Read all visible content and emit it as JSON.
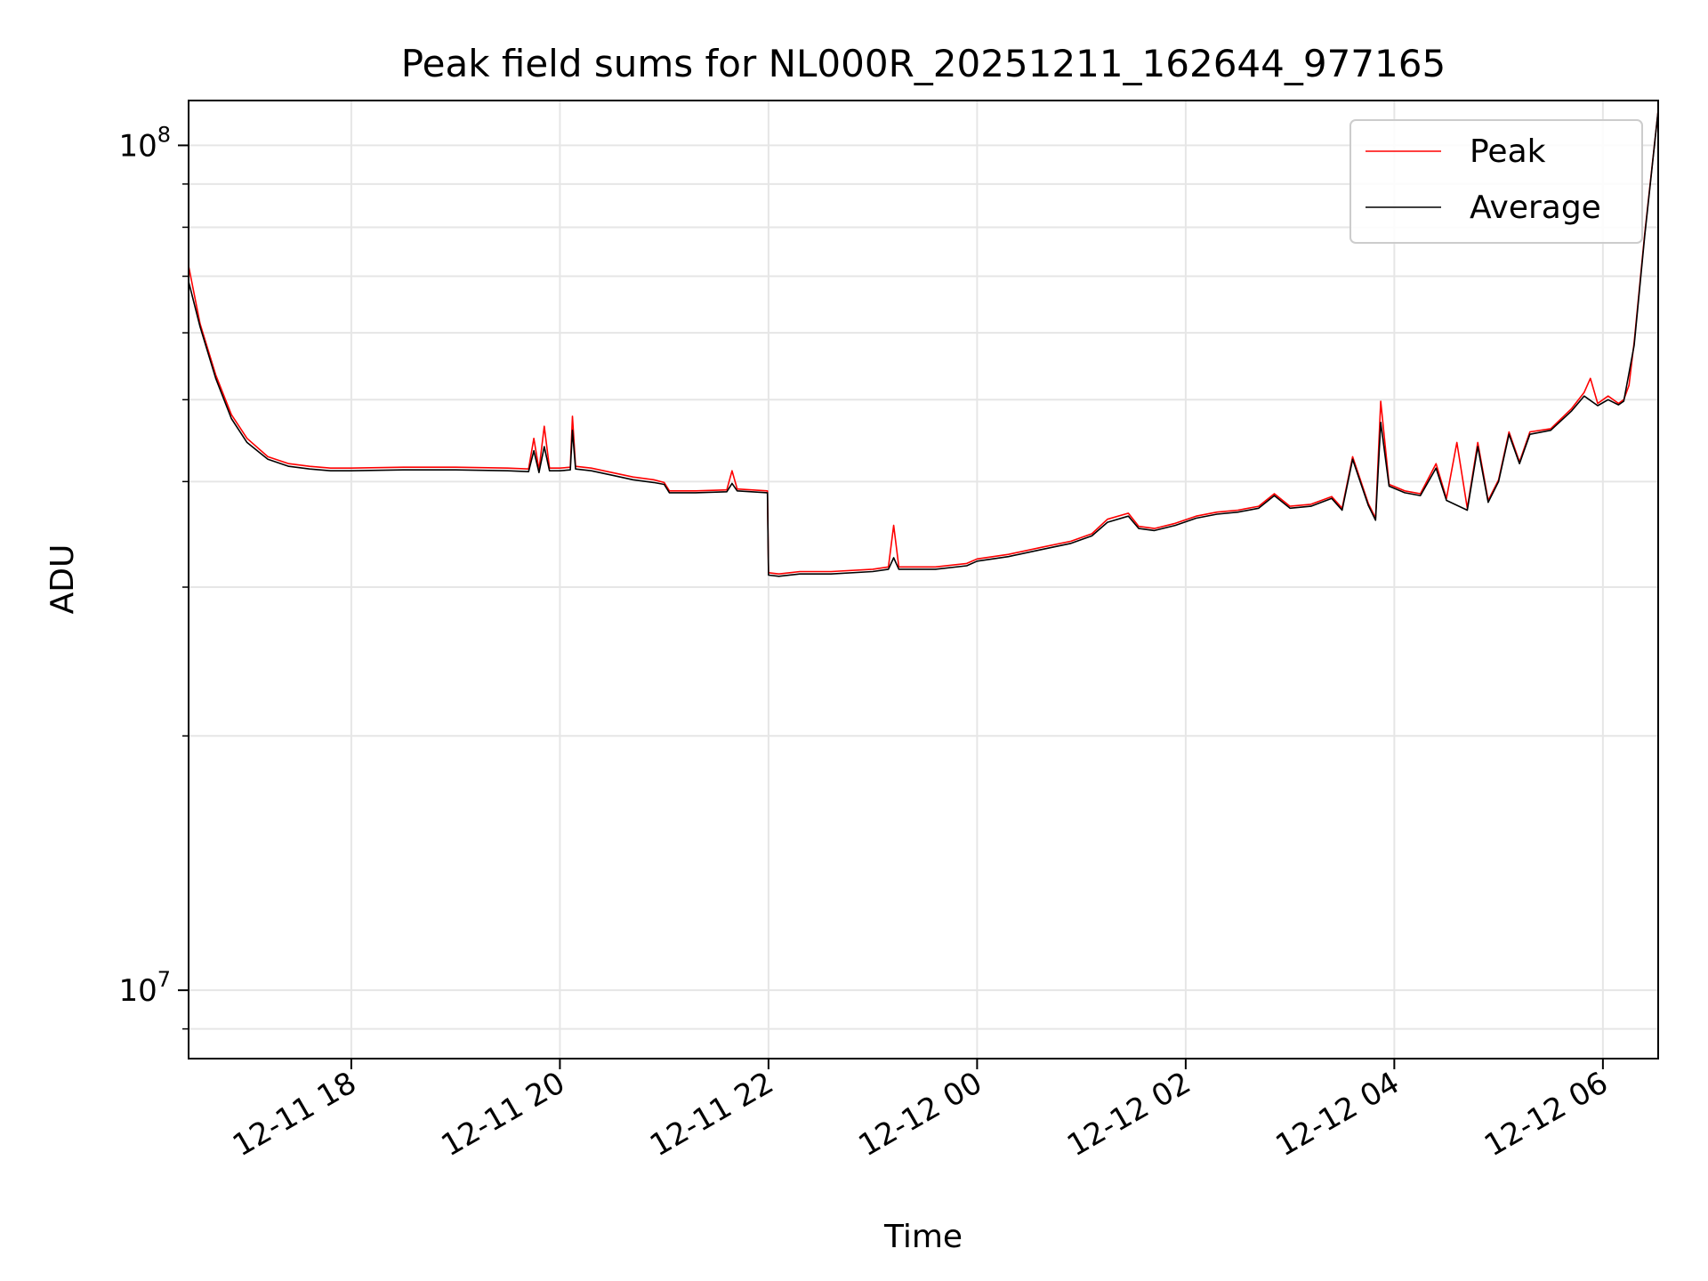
{
  "chart_data": {
    "type": "line",
    "title": "Peak field sums for NL000R_20251211_162644_977165",
    "xlabel": "Time",
    "ylabel": "ADU",
    "yscale": "log",
    "x_unit": "hours since 2025-12-11 00:00",
    "xlim": [
      16.44,
      30.53
    ],
    "ylim": [
      8300000.0,
      113000000.0
    ],
    "grid": true,
    "legend_position": "upper right",
    "x_ticks": [
      {
        "value": 18,
        "label": "12-11 18"
      },
      {
        "value": 20,
        "label": "12-11 20"
      },
      {
        "value": 22,
        "label": "12-11 22"
      },
      {
        "value": 24,
        "label": "12-12 00"
      },
      {
        "value": 26,
        "label": "12-12 02"
      },
      {
        "value": 28,
        "label": "12-12 04"
      },
      {
        "value": 30,
        "label": "12-12 06"
      }
    ],
    "y_major_ticks": [
      {
        "value": 10000000,
        "base": "10",
        "exp": "7"
      },
      {
        "value": 100000000,
        "base": "10",
        "exp": "8"
      }
    ],
    "y_minor_ticks": [
      9000000,
      20000000,
      30000000,
      40000000,
      50000000,
      60000000,
      70000000,
      80000000,
      90000000
    ],
    "series": [
      {
        "name": "Average",
        "color": "#000000",
        "points": [
          [
            16.44,
            69000000.0
          ],
          [
            16.55,
            61000000.0
          ],
          [
            16.7,
            53000000.0
          ],
          [
            16.85,
            47500000.0
          ],
          [
            17.0,
            44500000.0
          ],
          [
            17.2,
            42500000.0
          ],
          [
            17.4,
            41700000.0
          ],
          [
            17.6,
            41400000.0
          ],
          [
            17.8,
            41200000.0
          ],
          [
            18.0,
            41200000.0
          ],
          [
            18.5,
            41300000.0
          ],
          [
            19.0,
            41300000.0
          ],
          [
            19.5,
            41200000.0
          ],
          [
            19.7,
            41100000.0
          ],
          [
            19.75,
            43500000.0
          ],
          [
            19.8,
            41000000.0
          ],
          [
            19.85,
            44000000.0
          ],
          [
            19.9,
            41200000.0
          ],
          [
            20.0,
            41200000.0
          ],
          [
            20.1,
            41300000.0
          ],
          [
            20.12,
            46000000.0
          ],
          [
            20.15,
            41400000.0
          ],
          [
            20.3,
            41200000.0
          ],
          [
            20.5,
            40700000.0
          ],
          [
            20.7,
            40200000.0
          ],
          [
            20.9,
            39900000.0
          ],
          [
            21.0,
            39700000.0
          ],
          [
            21.05,
            38800000.0
          ],
          [
            21.3,
            38800000.0
          ],
          [
            21.6,
            38900000.0
          ],
          [
            21.65,
            39800000.0
          ],
          [
            21.7,
            39000000.0
          ],
          [
            21.99,
            38800000.0
          ],
          [
            22.0,
            31000000.0
          ],
          [
            22.1,
            30900000.0
          ],
          [
            22.3,
            31100000.0
          ],
          [
            22.6,
            31100000.0
          ],
          [
            23.0,
            31300000.0
          ],
          [
            23.15,
            31500000.0
          ],
          [
            23.2,
            32500000.0
          ],
          [
            23.25,
            31500000.0
          ],
          [
            23.6,
            31500000.0
          ],
          [
            23.9,
            31800000.0
          ],
          [
            24.0,
            32200000.0
          ],
          [
            24.3,
            32600000.0
          ],
          [
            24.6,
            33200000.0
          ],
          [
            24.9,
            33800000.0
          ],
          [
            25.1,
            34500000.0
          ],
          [
            25.25,
            35800000.0
          ],
          [
            25.45,
            36400000.0
          ],
          [
            25.55,
            35200000.0
          ],
          [
            25.7,
            35000000.0
          ],
          [
            25.9,
            35500000.0
          ],
          [
            26.1,
            36200000.0
          ],
          [
            26.3,
            36600000.0
          ],
          [
            26.5,
            36800000.0
          ],
          [
            26.7,
            37200000.0
          ],
          [
            26.85,
            38500000.0
          ],
          [
            27.0,
            37200000.0
          ],
          [
            27.2,
            37400000.0
          ],
          [
            27.4,
            38200000.0
          ],
          [
            27.5,
            37000000.0
          ],
          [
            27.6,
            42500000.0
          ],
          [
            27.75,
            37500000.0
          ],
          [
            27.82,
            36000000.0
          ],
          [
            27.87,
            47000000.0
          ],
          [
            27.95,
            39500000.0
          ],
          [
            28.1,
            38800000.0
          ],
          [
            28.25,
            38500000.0
          ],
          [
            28.4,
            41500000.0
          ],
          [
            28.5,
            38000000.0
          ],
          [
            28.7,
            37000000.0
          ],
          [
            28.8,
            44000000.0
          ],
          [
            28.9,
            37800000.0
          ],
          [
            29.0,
            40000000.0
          ],
          [
            29.1,
            45500000.0
          ],
          [
            29.2,
            42000000.0
          ],
          [
            29.3,
            45500000.0
          ],
          [
            29.5,
            46000000.0
          ],
          [
            29.7,
            48500000.0
          ],
          [
            29.82,
            50500000.0
          ],
          [
            29.95,
            49200000.0
          ],
          [
            30.05,
            50000000.0
          ],
          [
            30.15,
            49300000.0
          ],
          [
            30.2,
            49800000.0
          ],
          [
            30.3,
            58000000.0
          ],
          [
            30.4,
            78000000.0
          ],
          [
            30.53,
            110000000.0
          ]
        ]
      },
      {
        "name": "Peak",
        "color": "#ff0000",
        "points": [
          [
            16.44,
            72000000.0
          ],
          [
            16.55,
            61500000.0
          ],
          [
            16.7,
            53500000.0
          ],
          [
            16.85,
            48000000.0
          ],
          [
            17.0,
            45000000.0
          ],
          [
            17.2,
            42800000.0
          ],
          [
            17.4,
            42000000.0
          ],
          [
            17.6,
            41700000.0
          ],
          [
            17.8,
            41500000.0
          ],
          [
            18.0,
            41500000.0
          ],
          [
            18.5,
            41600000.0
          ],
          [
            19.0,
            41600000.0
          ],
          [
            19.5,
            41500000.0
          ],
          [
            19.7,
            41400000.0
          ],
          [
            19.75,
            45000000.0
          ],
          [
            19.8,
            41300000.0
          ],
          [
            19.85,
            46500000.0
          ],
          [
            19.9,
            41500000.0
          ],
          [
            20.0,
            41500000.0
          ],
          [
            20.1,
            41600000.0
          ],
          [
            20.12,
            47800000.0
          ],
          [
            20.15,
            41700000.0
          ],
          [
            20.3,
            41500000.0
          ],
          [
            20.5,
            41000000.0
          ],
          [
            20.7,
            40500000.0
          ],
          [
            20.9,
            40200000.0
          ],
          [
            21.0,
            39900000.0
          ],
          [
            21.05,
            39000000.0
          ],
          [
            21.3,
            39000000.0
          ],
          [
            21.6,
            39100000.0
          ],
          [
            21.65,
            41200000.0
          ],
          [
            21.7,
            39200000.0
          ],
          [
            21.99,
            39000000.0
          ],
          [
            22.0,
            31200000.0
          ],
          [
            22.1,
            31100000.0
          ],
          [
            22.3,
            31300000.0
          ],
          [
            22.6,
            31300000.0
          ],
          [
            23.0,
            31500000.0
          ],
          [
            23.15,
            31700000.0
          ],
          [
            23.2,
            35500000.0
          ],
          [
            23.25,
            31700000.0
          ],
          [
            23.6,
            31700000.0
          ],
          [
            23.9,
            32000000.0
          ],
          [
            24.0,
            32400000.0
          ],
          [
            24.3,
            32800000.0
          ],
          [
            24.6,
            33400000.0
          ],
          [
            24.9,
            34000000.0
          ],
          [
            25.1,
            34700000.0
          ],
          [
            25.25,
            36100000.0
          ],
          [
            25.45,
            36700000.0
          ],
          [
            25.55,
            35400000.0
          ],
          [
            25.7,
            35200000.0
          ],
          [
            25.9,
            35700000.0
          ],
          [
            26.1,
            36400000.0
          ],
          [
            26.3,
            36800000.0
          ],
          [
            26.5,
            37000000.0
          ],
          [
            26.7,
            37400000.0
          ],
          [
            26.85,
            38700000.0
          ],
          [
            27.0,
            37400000.0
          ],
          [
            27.2,
            37600000.0
          ],
          [
            27.4,
            38400000.0
          ],
          [
            27.5,
            37200000.0
          ],
          [
            27.6,
            42800000.0
          ],
          [
            27.75,
            37700000.0
          ],
          [
            27.82,
            36200000.0
          ],
          [
            27.87,
            49800000.0
          ],
          [
            27.95,
            39700000.0
          ],
          [
            28.1,
            39000000.0
          ],
          [
            28.25,
            38700000.0
          ],
          [
            28.4,
            42000000.0
          ],
          [
            28.5,
            38200000.0
          ],
          [
            28.6,
            44500000.0
          ],
          [
            28.7,
            37200000.0
          ],
          [
            28.8,
            44500000.0
          ],
          [
            28.9,
            38000000.0
          ],
          [
            29.0,
            40200000.0
          ],
          [
            29.1,
            45800000.0
          ],
          [
            29.2,
            42200000.0
          ],
          [
            29.3,
            45800000.0
          ],
          [
            29.5,
            46200000.0
          ],
          [
            29.7,
            48800000.0
          ],
          [
            29.82,
            51000000.0
          ],
          [
            29.88,
            53000000.0
          ],
          [
            29.95,
            49500000.0
          ],
          [
            30.05,
            50500000.0
          ],
          [
            30.15,
            49500000.0
          ],
          [
            30.2,
            50000000.0
          ],
          [
            30.25,
            52000000.0
          ],
          [
            30.3,
            58500000.0
          ],
          [
            30.4,
            78500000.0
          ],
          [
            30.53,
            110000000.0
          ]
        ]
      }
    ]
  }
}
